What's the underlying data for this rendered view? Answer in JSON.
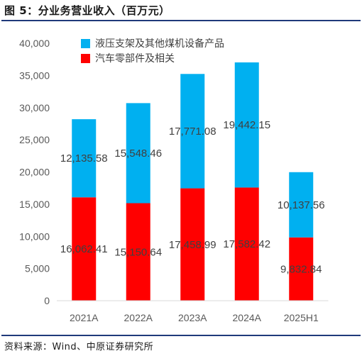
{
  "figure": {
    "title": "图 5：分业务营业收入（百万元）",
    "source": "资料来源：Wind、中原证券研究所"
  },
  "chart_data": {
    "type": "bar",
    "stacked": true,
    "categories": [
      "2021A",
      "2022A",
      "2023A",
      "2024A",
      "2025H1"
    ],
    "series": [
      {
        "name": "汽车零部件及相关",
        "color": "#ff0000",
        "values": [
          16062.41,
          15150.64,
          17458.99,
          17582.42,
          9832.84
        ],
        "labels": [
          "16,062.41",
          "15,150.64",
          "17,458.99",
          "17,582.42",
          "9,832.84"
        ]
      },
      {
        "name": "液压支架及其他煤机设备产品",
        "color": "#00b0f0",
        "values": [
          12135.58,
          15548.46,
          17771.08,
          19442.15,
          10137.56
        ],
        "labels": [
          "12,135.58",
          "15,548.46",
          "17,771.08",
          "19,442.15",
          "10,137.56"
        ]
      }
    ],
    "ylim": [
      0,
      40000
    ],
    "yticks": [
      "0",
      "5,000",
      "10,000",
      "15,000",
      "20,000",
      "25,000",
      "30,000",
      "35,000",
      "40,000"
    ],
    "legend_position": "top"
  }
}
